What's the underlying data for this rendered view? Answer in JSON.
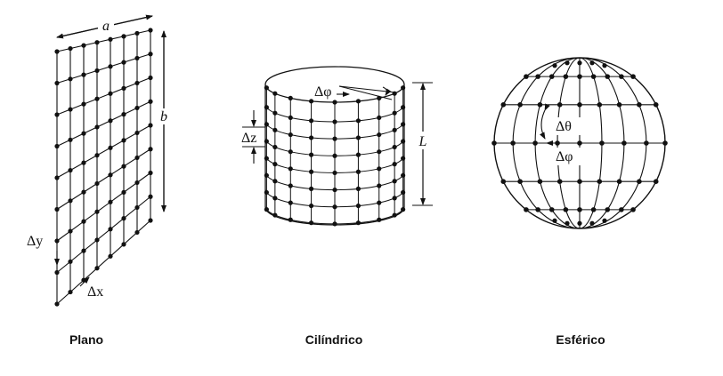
{
  "figures": [
    {
      "id": "plano",
      "caption": "Plano",
      "labels": {
        "width": "a",
        "height": "b",
        "dx": "Δx",
        "dy": "Δy"
      }
    },
    {
      "id": "cilindrico",
      "caption": "Cilíndrico",
      "labels": {
        "dphi": "Δφ",
        "dz": "Δz",
        "length": "L"
      }
    },
    {
      "id": "esferico",
      "caption": "Esférico",
      "labels": {
        "dtheta": "Δθ",
        "dphi": "Δφ"
      }
    }
  ],
  "colors": {
    "ink": "#111111",
    "background": "#ffffff"
  }
}
